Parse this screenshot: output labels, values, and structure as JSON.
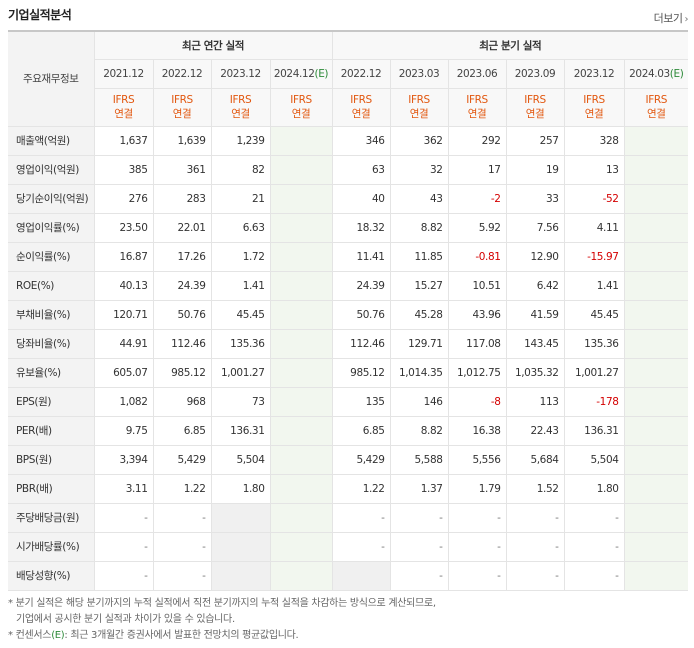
{
  "header": {
    "title": "기업실적분석",
    "more": "더보기"
  },
  "table": {
    "corner_label": "주요재무정보",
    "annual_group": "최근 연간 실적",
    "quarter_group": "최근 분기 실적",
    "annual_periods": [
      "2021.12",
      "2022.12",
      "2023.12",
      "2024.12"
    ],
    "annual_est_mark": "(E)",
    "quarter_periods": [
      "2022.12",
      "2023.03",
      "2023.06",
      "2023.09",
      "2023.12",
      "2024.03"
    ],
    "quarter_est_mark": "(E)",
    "ifrs_top": "IFRS",
    "ifrs_bottom": "연결",
    "rows": [
      {
        "label": "매출액(억원)",
        "annual": [
          "1,637",
          "1,639",
          "1,239",
          ""
        ],
        "quarter": [
          "346",
          "362",
          "292",
          "257",
          "328",
          ""
        ]
      },
      {
        "label": "영업이익(억원)",
        "annual": [
          "385",
          "361",
          "82",
          ""
        ],
        "quarter": [
          "63",
          "32",
          "17",
          "19",
          "13",
          ""
        ]
      },
      {
        "label": "당기순이익(억원)",
        "annual": [
          "276",
          "283",
          "21",
          ""
        ],
        "quarter": [
          "40",
          "43",
          "-2",
          "33",
          "-52",
          ""
        ]
      },
      {
        "label": "영업이익률(%)",
        "annual": [
          "23.50",
          "22.01",
          "6.63",
          ""
        ],
        "quarter": [
          "18.32",
          "8.82",
          "5.92",
          "7.56",
          "4.11",
          ""
        ]
      },
      {
        "label": "순이익률(%)",
        "annual": [
          "16.87",
          "17.26",
          "1.72",
          ""
        ],
        "quarter": [
          "11.41",
          "11.85",
          "-0.81",
          "12.90",
          "-15.97",
          ""
        ]
      },
      {
        "label": "ROE(%)",
        "annual": [
          "40.13",
          "24.39",
          "1.41",
          ""
        ],
        "quarter": [
          "24.39",
          "15.27",
          "10.51",
          "6.42",
          "1.41",
          ""
        ]
      },
      {
        "label": "부채비율(%)",
        "annual": [
          "120.71",
          "50.76",
          "45.45",
          ""
        ],
        "quarter": [
          "50.76",
          "45.28",
          "43.96",
          "41.59",
          "45.45",
          ""
        ]
      },
      {
        "label": "당좌비율(%)",
        "annual": [
          "44.91",
          "112.46",
          "135.36",
          ""
        ],
        "quarter": [
          "112.46",
          "129.71",
          "117.08",
          "143.45",
          "135.36",
          ""
        ]
      },
      {
        "label": "유보율(%)",
        "annual": [
          "605.07",
          "985.12",
          "1,001.27",
          ""
        ],
        "quarter": [
          "985.12",
          "1,014.35",
          "1,012.75",
          "1,035.32",
          "1,001.27",
          ""
        ]
      },
      {
        "label": "EPS(원)",
        "annual": [
          "1,082",
          "968",
          "73",
          ""
        ],
        "quarter": [
          "135",
          "146",
          "-8",
          "113",
          "-178",
          ""
        ]
      },
      {
        "label": "PER(배)",
        "annual": [
          "9.75",
          "6.85",
          "136.31",
          ""
        ],
        "quarter": [
          "6.85",
          "8.82",
          "16.38",
          "22.43",
          "136.31",
          ""
        ]
      },
      {
        "label": "BPS(원)",
        "annual": [
          "3,394",
          "5,429",
          "5,504",
          ""
        ],
        "quarter": [
          "5,429",
          "5,588",
          "5,556",
          "5,684",
          "5,504",
          ""
        ]
      },
      {
        "label": "PBR(배)",
        "annual": [
          "3.11",
          "1.22",
          "1.80",
          ""
        ],
        "quarter": [
          "1.22",
          "1.37",
          "1.79",
          "1.52",
          "1.80",
          ""
        ]
      },
      {
        "label": "주당배당금(원)",
        "annual": [
          "-",
          "-",
          "",
          ""
        ],
        "quarter": [
          "-",
          "-",
          "-",
          "-",
          "-",
          ""
        ]
      },
      {
        "label": "시가배당률(%)",
        "annual": [
          "-",
          "-",
          "",
          ""
        ],
        "quarter": [
          "-",
          "-",
          "-",
          "-",
          "-",
          ""
        ]
      },
      {
        "label": "배당성향(%)",
        "annual": [
          "-",
          "-",
          "",
          ""
        ],
        "quarter": [
          "",
          "-",
          "-",
          "-",
          "-",
          ""
        ]
      }
    ]
  },
  "notes": {
    "line1": "* 분기 실적은 해당 분기까지의 누적 실적에서 직전 분기까지의 누적 실적을 차감하는 방식으로 계산되므로,",
    "line2": "기업에서 공시한 분기 실적과 차이가 있을 수 있습니다.",
    "line3_prefix": "* 컨센서스",
    "line3_mark": "(E)",
    "line3_suffix": ": 최근 3개월간 증권사에서 발표한 전망치의 평균값입니다."
  },
  "colors": {
    "ifrs": "#e2570f",
    "negative": "#d40000",
    "estimate": "#2e8b3a"
  }
}
